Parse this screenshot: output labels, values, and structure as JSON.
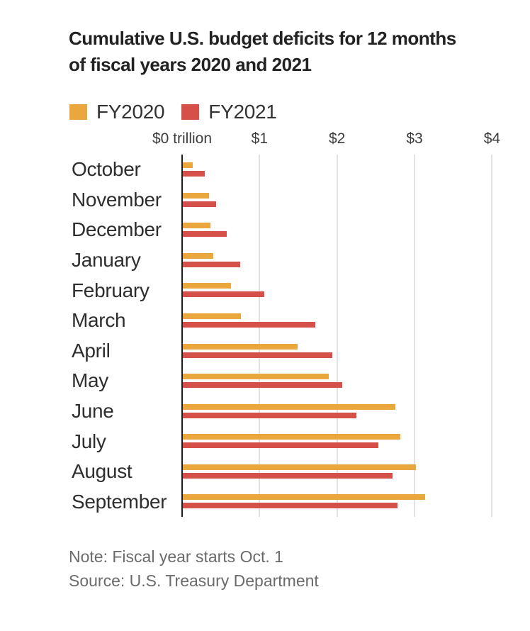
{
  "header": {
    "title": "Cumulative U.S. budget deficits for 12 months of fiscal years 2020 and 2021"
  },
  "legend": {
    "items": [
      {
        "label": "FY2020",
        "color": "#EAA73E"
      },
      {
        "label": "FY2021",
        "color": "#D6504A"
      }
    ]
  },
  "chart_data": {
    "type": "bar",
    "orientation": "horizontal",
    "title": "Cumulative U.S. budget deficits for 12 months of fiscal years 2020 and 2021",
    "unit": "trillion USD",
    "categories": [
      "October",
      "November",
      "December",
      "January",
      "February",
      "March",
      "April",
      "May",
      "June",
      "July",
      "August",
      "September"
    ],
    "series": [
      {
        "name": "FY2020",
        "color": "#EAA73E",
        "values": [
          0.13,
          0.34,
          0.36,
          0.39,
          0.62,
          0.75,
          1.48,
          1.88,
          2.74,
          2.81,
          3.01,
          3.13
        ]
      },
      {
        "name": "FY2021",
        "color": "#D6504A",
        "values": [
          0.28,
          0.43,
          0.57,
          0.74,
          1.05,
          1.71,
          1.93,
          2.06,
          2.24,
          2.52,
          2.71,
          2.77
        ]
      }
    ],
    "x_axis": {
      "ticks": [
        0,
        1,
        2,
        3,
        4
      ],
      "tick_labels": [
        "$0 trillion",
        "$1",
        "$2",
        "$3",
        "$4"
      ],
      "xlim": [
        0,
        4.49
      ]
    },
    "gridlines": true,
    "legend_position": "top"
  },
  "footer": {
    "note": "Note: Fiscal year starts Oct. 1",
    "source": "Source: U.S. Treasury Department"
  }
}
